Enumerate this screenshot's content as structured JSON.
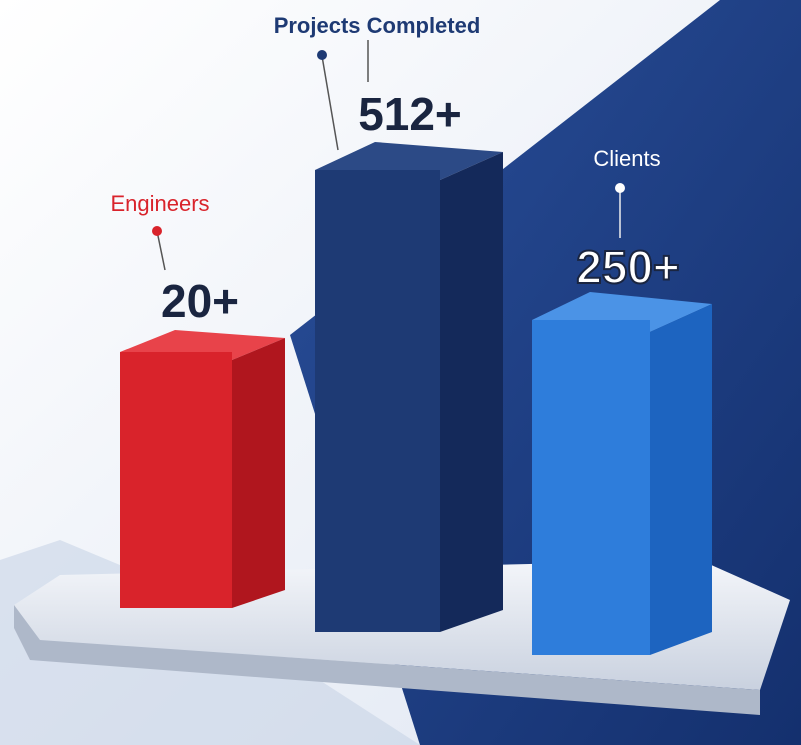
{
  "items": [
    {
      "label": "Engineers",
      "value": "20+"
    },
    {
      "label": "Projects Completed",
      "value": "512+"
    },
    {
      "label": "Clients",
      "value": "250+"
    }
  ]
}
